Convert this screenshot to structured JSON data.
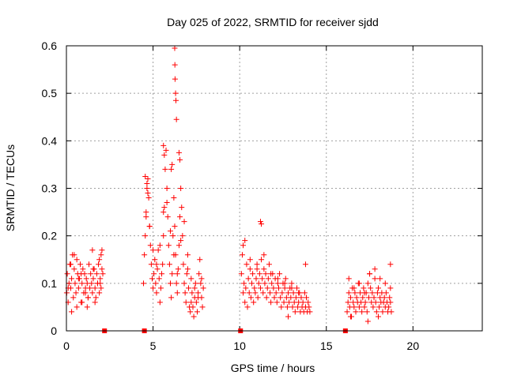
{
  "chart_data": {
    "type": "scatter",
    "title": "Day 025 of 2022, SRMTID for receiver sjdd",
    "xlabel": "GPS time / hours",
    "ylabel": "SRMTID / TECUs",
    "xlim": [
      0,
      24
    ],
    "ylim": [
      0,
      0.6
    ],
    "xticks": [
      0,
      5,
      10,
      15,
      20
    ],
    "yticks": [
      0,
      0.1,
      0.2,
      0.3,
      0.4,
      0.5,
      0.6
    ],
    "xtick_labels": [
      "0",
      "5",
      "10",
      "15",
      "20"
    ],
    "ytick_labels": [
      "0",
      "0.1",
      "0.2",
      "0.3",
      "0.4",
      "0.5",
      "0.6"
    ],
    "grid": true,
    "marker": "plus",
    "series": [
      {
        "name": "SRMTID",
        "color": "#ff0000",
        "x": [
          0.02,
          0.05,
          0.1,
          0.15,
          0.2,
          0.25,
          0.3,
          0.35,
          0.4,
          0.45,
          0.5,
          0.55,
          0.6,
          0.65,
          0.7,
          0.75,
          0.8,
          0.85,
          0.9,
          0.95,
          1.0,
          1.05,
          1.1,
          1.15,
          1.2,
          1.25,
          1.3,
          1.35,
          1.4,
          1.45,
          1.5,
          1.55,
          1.6,
          1.65,
          1.7,
          1.75,
          1.8,
          1.85,
          1.9,
          1.95,
          2.0,
          2.05,
          2.1,
          2.0,
          1.9,
          1.8,
          1.5,
          1.2,
          0.9,
          0.6,
          0.3,
          0.1,
          0.45,
          0.85,
          1.25,
          1.65,
          2.05,
          0.25,
          0.7,
          1.1,
          1.55,
          1.95,
          4.45,
          4.5,
          4.55,
          4.6,
          4.65,
          4.7,
          4.75,
          4.8,
          4.85,
          4.9,
          4.95,
          5.0,
          5.05,
          5.1,
          5.15,
          5.2,
          5.25,
          5.3,
          5.35,
          5.4,
          5.45,
          5.5,
          5.55,
          5.6,
          5.65,
          5.7,
          5.75,
          5.8,
          5.85,
          5.9,
          5.95,
          6.0,
          6.05,
          6.1,
          6.15,
          6.2,
          6.25,
          6.3,
          6.35,
          6.4,
          6.45,
          6.5,
          6.55,
          6.6,
          6.65,
          6.7,
          6.75,
          6.8,
          6.85,
          6.9,
          6.95,
          7.0,
          7.05,
          7.1,
          7.15,
          7.2,
          7.25,
          7.3,
          7.35,
          7.4,
          7.45,
          7.5,
          7.55,
          7.6,
          7.65,
          7.7,
          7.75,
          7.8,
          7.85,
          7.9,
          4.6,
          4.7,
          4.8,
          5.0,
          5.2,
          5.4,
          5.6,
          5.8,
          6.0,
          6.2,
          6.4,
          6.6,
          6.8,
          7.0,
          7.2,
          7.4,
          7.6,
          7.8,
          6.25,
          6.26,
          6.27,
          6.3,
          6.32,
          6.35,
          5.6,
          5.65,
          4.55,
          4.65,
          6.5,
          6.55,
          6.05,
          6.1,
          10.1,
          10.15,
          10.2,
          10.25,
          10.3,
          10.35,
          10.4,
          10.45,
          10.5,
          10.55,
          10.6,
          10.65,
          10.7,
          10.75,
          10.8,
          10.85,
          10.9,
          10.95,
          11.0,
          11.05,
          11.1,
          11.15,
          11.2,
          11.25,
          11.3,
          11.35,
          11.4,
          11.45,
          11.5,
          11.55,
          11.6,
          11.65,
          11.7,
          11.75,
          11.8,
          11.85,
          11.9,
          11.95,
          12.0,
          12.05,
          12.1,
          12.15,
          12.2,
          12.25,
          12.3,
          12.35,
          12.4,
          12.45,
          12.5,
          12.55,
          12.6,
          12.65,
          12.7,
          12.75,
          12.8,
          12.85,
          12.9,
          12.95,
          13.0,
          13.05,
          13.1,
          13.15,
          13.2,
          13.25,
          13.3,
          13.35,
          13.4,
          13.45,
          13.5,
          13.55,
          13.6,
          13.65,
          13.7,
          13.75,
          13.8,
          13.85,
          13.9,
          13.95,
          14.0,
          14.05,
          10.2,
          10.6,
          11.0,
          11.4,
          11.8,
          12.2,
          12.6,
          13.0,
          13.4,
          13.8,
          11.2,
          11.25,
          10.3,
          12.8,
          16.2,
          16.25,
          16.3,
          16.35,
          16.4,
          16.45,
          16.5,
          16.55,
          16.6,
          16.65,
          16.7,
          16.75,
          16.8,
          16.85,
          16.9,
          16.95,
          17.0,
          17.05,
          17.1,
          17.15,
          17.2,
          17.25,
          17.3,
          17.35,
          17.4,
          17.45,
          17.5,
          17.55,
          17.6,
          17.65,
          17.7,
          17.75,
          17.8,
          17.85,
          17.9,
          17.95,
          18.0,
          18.05,
          18.1,
          18.15,
          18.2,
          18.25,
          18.3,
          18.35,
          18.4,
          18.45,
          18.5,
          18.55,
          18.6,
          18.65,
          18.7,
          18.75,
          16.3,
          16.6,
          16.9,
          17.2,
          17.5,
          17.8,
          18.1,
          18.4,
          18.7,
          16.4,
          17.4,
          18.0,
          18.7
        ],
        "y": [
          0.08,
          0.12,
          0.06,
          0.1,
          0.14,
          0.09,
          0.11,
          0.16,
          0.07,
          0.13,
          0.1,
          0.08,
          0.15,
          0.12,
          0.09,
          0.11,
          0.14,
          0.06,
          0.1,
          0.13,
          0.08,
          0.12,
          0.09,
          0.11,
          0.1,
          0.07,
          0.14,
          0.09,
          0.12,
          0.1,
          0.08,
          0.11,
          0.13,
          0.09,
          0.07,
          0.12,
          0.1,
          0.14,
          0.08,
          0.11,
          0.09,
          0.13,
          0.12,
          0.16,
          0.15,
          0.1,
          0.17,
          0.05,
          0.06,
          0.05,
          0.04,
          0.09,
          0.16,
          0.12,
          0.07,
          0.06,
          0.17,
          0.14,
          0.11,
          0.08,
          0.13,
          0.1,
          0.1,
          0.16,
          0.2,
          0.25,
          0.3,
          0.32,
          0.28,
          0.22,
          0.18,
          0.14,
          0.11,
          0.09,
          0.12,
          0.15,
          0.1,
          0.08,
          0.13,
          0.17,
          0.11,
          0.06,
          0.09,
          0.12,
          0.14,
          0.2,
          0.26,
          0.34,
          0.38,
          0.3,
          0.24,
          0.18,
          0.14,
          0.1,
          0.07,
          0.12,
          0.2,
          0.28,
          0.22,
          0.16,
          0.1,
          0.08,
          0.13,
          0.18,
          0.24,
          0.3,
          0.26,
          0.2,
          0.14,
          0.1,
          0.08,
          0.06,
          0.12,
          0.16,
          0.09,
          0.05,
          0.04,
          0.06,
          0.08,
          0.05,
          0.03,
          0.07,
          0.1,
          0.06,
          0.04,
          0.08,
          0.12,
          0.15,
          0.1,
          0.07,
          0.05,
          0.09,
          0.24,
          0.29,
          0.22,
          0.17,
          0.14,
          0.18,
          0.25,
          0.27,
          0.21,
          0.16,
          0.12,
          0.19,
          0.23,
          0.13,
          0.11,
          0.09,
          0.07,
          0.11,
          0.595,
          0.56,
          0.53,
          0.5,
          0.485,
          0.445,
          0.39,
          0.37,
          0.325,
          0.31,
          0.375,
          0.36,
          0.34,
          0.35,
          0.12,
          0.16,
          0.08,
          0.1,
          0.06,
          0.09,
          0.14,
          0.05,
          0.11,
          0.08,
          0.13,
          0.07,
          0.1,
          0.12,
          0.06,
          0.09,
          0.08,
          0.11,
          0.14,
          0.07,
          0.1,
          0.12,
          0.09,
          0.15,
          0.11,
          0.08,
          0.13,
          0.1,
          0.12,
          0.07,
          0.09,
          0.11,
          0.14,
          0.08,
          0.06,
          0.1,
          0.12,
          0.09,
          0.07,
          0.11,
          0.08,
          0.06,
          0.1,
          0.09,
          0.12,
          0.07,
          0.05,
          0.08,
          0.1,
          0.06,
          0.09,
          0.11,
          0.07,
          0.05,
          0.08,
          0.06,
          0.09,
          0.07,
          0.1,
          0.05,
          0.08,
          0.06,
          0.04,
          0.07,
          0.09,
          0.05,
          0.06,
          0.08,
          0.04,
          0.07,
          0.05,
          0.06,
          0.04,
          0.08,
          0.05,
          0.07,
          0.04,
          0.06,
          0.05,
          0.04,
          0.18,
          0.15,
          0.13,
          0.16,
          0.12,
          0.11,
          0.1,
          0.09,
          0.08,
          0.14,
          0.23,
          0.225,
          0.19,
          0.03,
          0.04,
          0.06,
          0.08,
          0.05,
          0.07,
          0.03,
          0.09,
          0.06,
          0.05,
          0.08,
          0.04,
          0.07,
          0.06,
          0.1,
          0.05,
          0.08,
          0.06,
          0.04,
          0.07,
          0.09,
          0.05,
          0.06,
          0.08,
          0.04,
          0.1,
          0.07,
          0.12,
          0.09,
          0.06,
          0.08,
          0.05,
          0.07,
          0.11,
          0.06,
          0.04,
          0.08,
          0.09,
          0.05,
          0.07,
          0.06,
          0.08,
          0.04,
          0.06,
          0.07,
          0.05,
          0.08,
          0.06,
          0.04,
          0.05,
          0.07,
          0.06,
          0.04,
          0.11,
          0.09,
          0.1,
          0.08,
          0.12,
          0.13,
          0.11,
          0.1,
          0.09,
          0.03,
          0.02,
          0.03,
          0.14
        ]
      }
    ],
    "gaps": {
      "color": "#ff0000",
      "x": [
        2.2,
        4.5,
        10.05,
        16.1
      ]
    }
  }
}
